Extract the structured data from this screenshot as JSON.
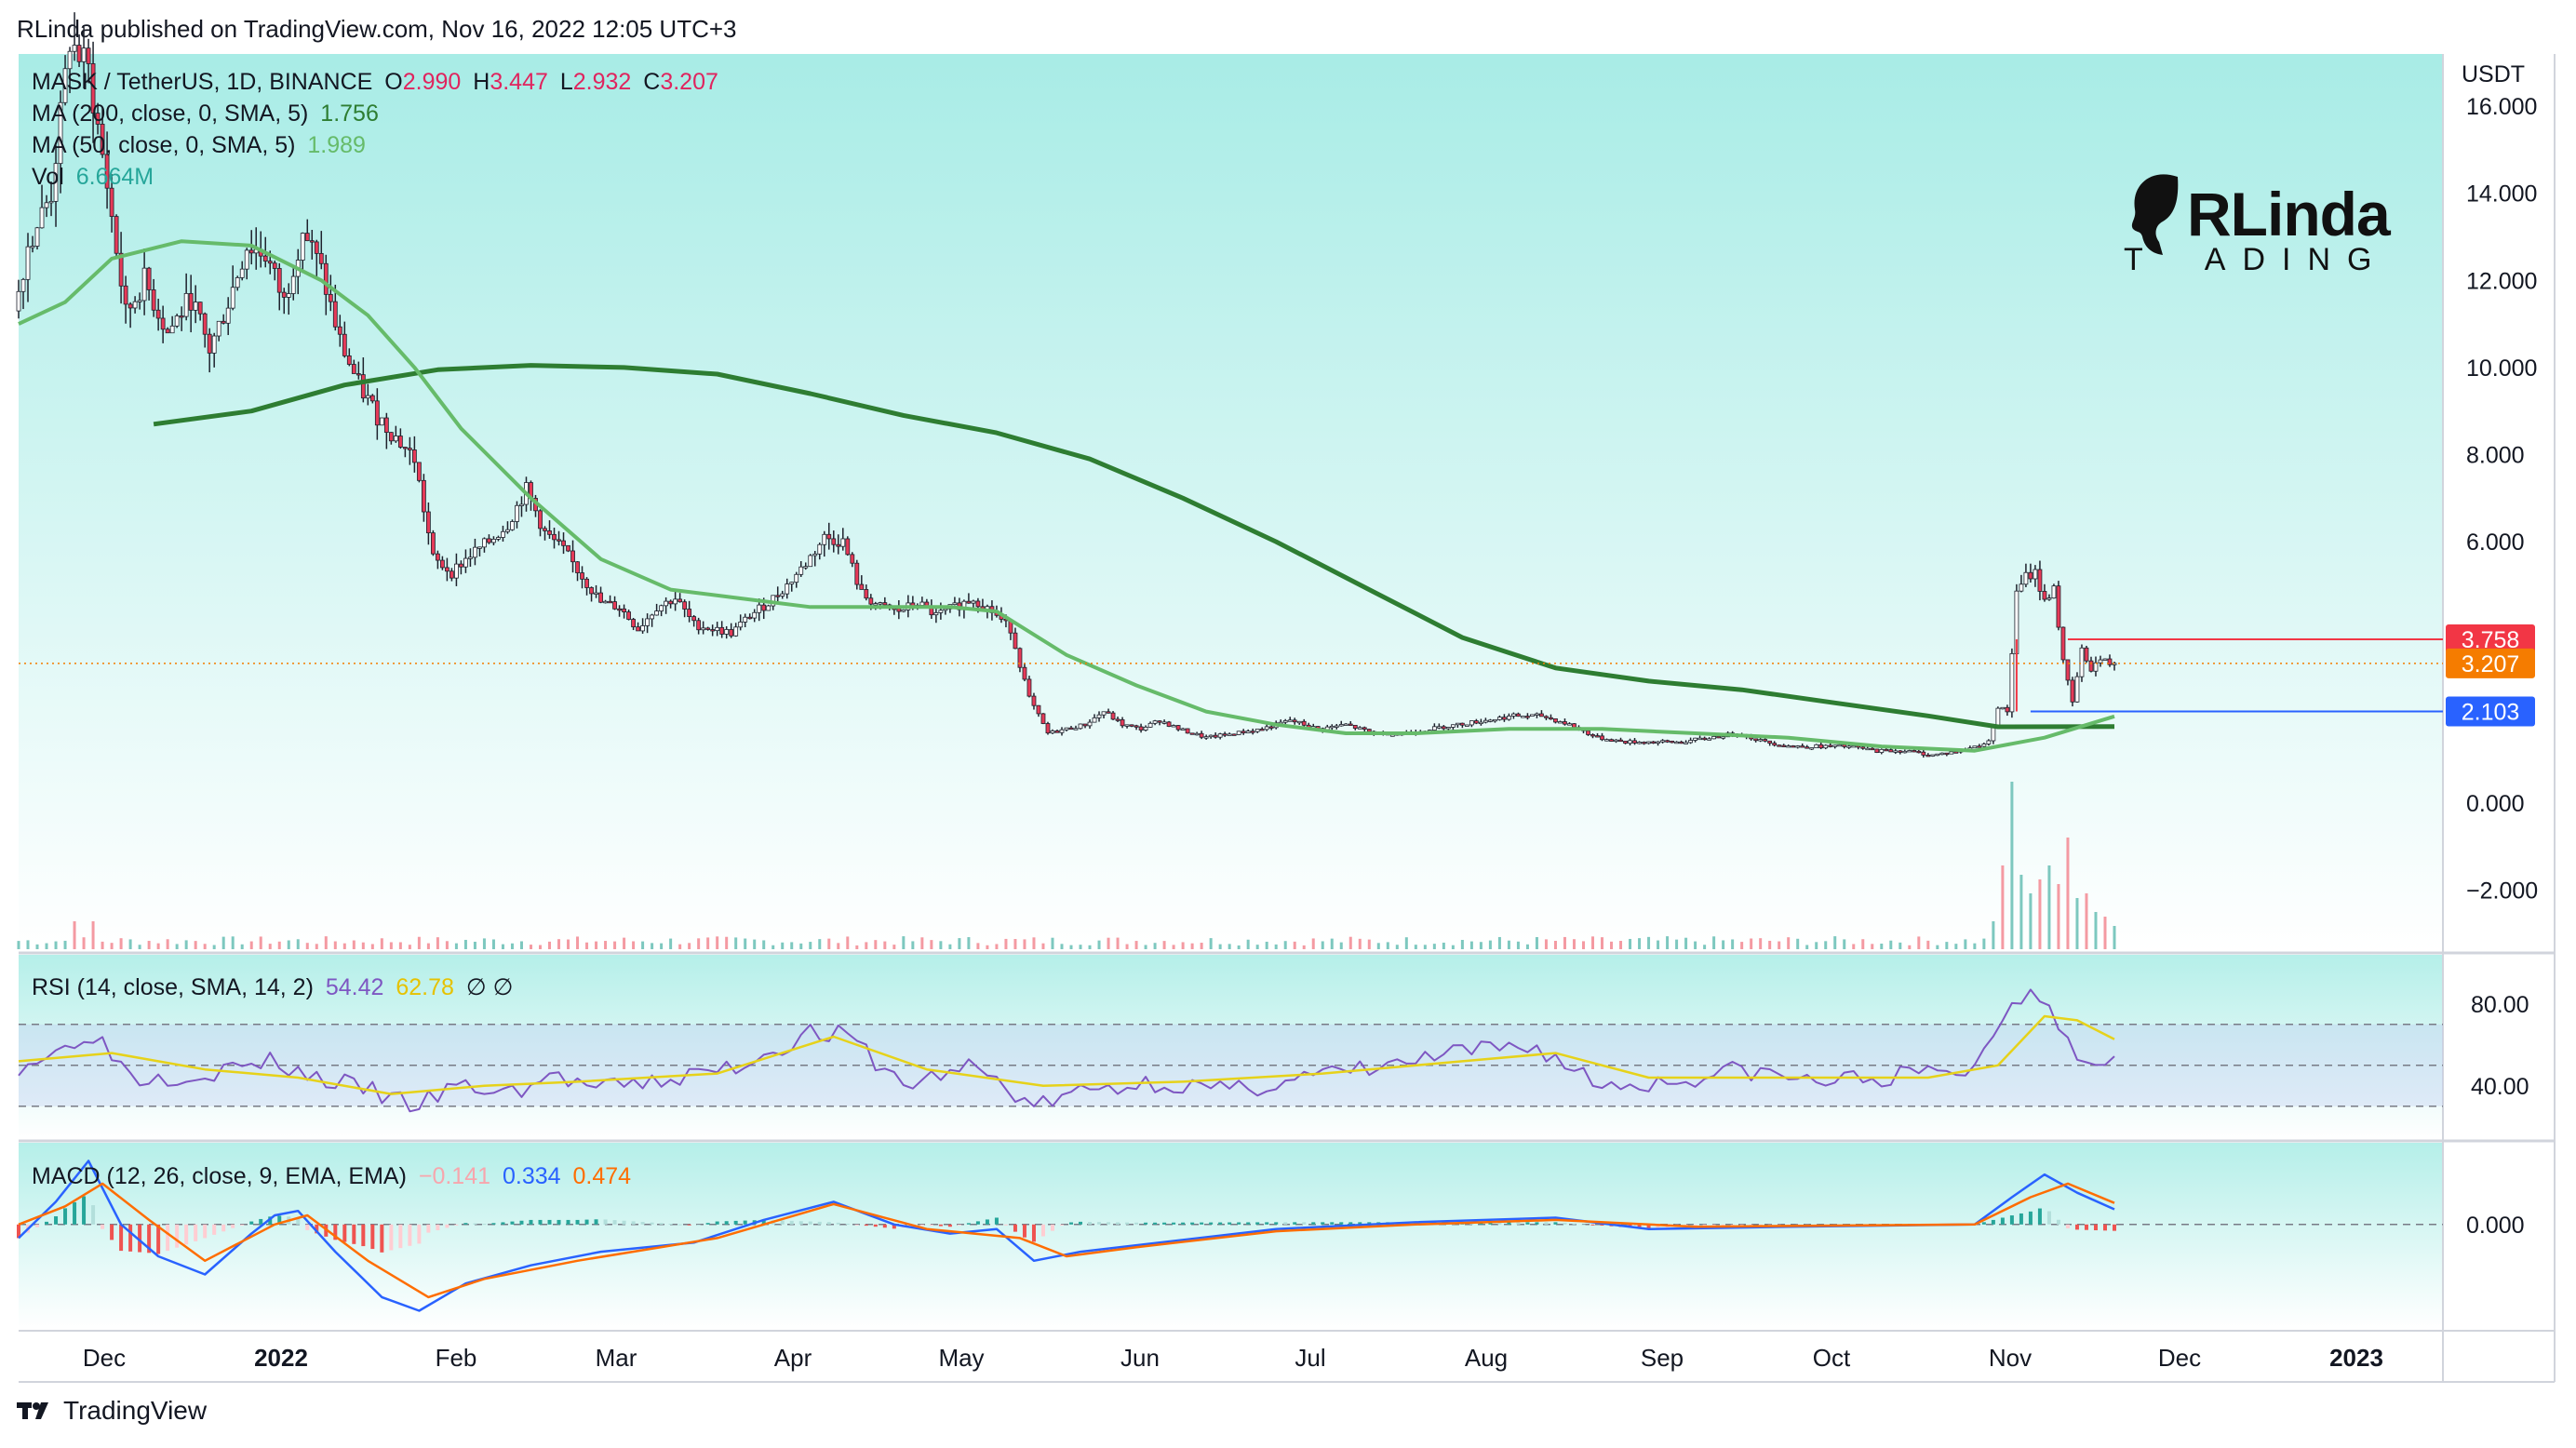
{
  "header": {
    "published": "RLinda published on TradingView.com, Nov 16, 2022 12:05 UTC+3"
  },
  "footer": {
    "brand": "TradingView"
  },
  "logo": {
    "line1": "RLinda",
    "line2_prefix": "T",
    "line2": "ADING"
  },
  "chart_data": [
    {
      "type": "candlestick",
      "symbol": "MASK / TetherUS, 1D, BINANCE",
      "ohlc": {
        "o_label": "O",
        "o": "2.990",
        "h_label": "H",
        "h": "3.447",
        "l_label": "L",
        "l": "2.932",
        "c_label": "C",
        "c": "3.207"
      },
      "currency": "USDT",
      "y_ticks": [
        "16.000",
        "14.000",
        "12.000",
        "10.000",
        "8.000",
        "6.000",
        "0.000",
        "−2.000"
      ],
      "ylim": [
        -3.4,
        17.2
      ],
      "price_labels": [
        {
          "value": 3.758,
          "text": "3.758",
          "color": "#f23645"
        },
        {
          "value": 3.207,
          "text": "3.207",
          "color": "#f57c00"
        },
        {
          "value": 2.103,
          "text": "2.103",
          "color": "#2962ff"
        }
      ],
      "x_ticks": [
        "Dec",
        "2022",
        "Feb",
        "Mar",
        "Apr",
        "May",
        "Jun",
        "Jul",
        "Aug",
        "Sep",
        "Oct",
        "Nov",
        "Dec",
        "2023"
      ],
      "close_path": [
        [
          0,
          11.3
        ],
        [
          3,
          12.8
        ],
        [
          8,
          14.0
        ],
        [
          12,
          17.5
        ],
        [
          16,
          16.8
        ],
        [
          20,
          14.2
        ],
        [
          24,
          11.2
        ],
        [
          28,
          12.0
        ],
        [
          33,
          10.8
        ],
        [
          38,
          11.6
        ],
        [
          42,
          10.4
        ],
        [
          46,
          11.5
        ],
        [
          50,
          12.8
        ],
        [
          54,
          12.6
        ],
        [
          58,
          11.5
        ],
        [
          62,
          13.2
        ],
        [
          66,
          12.2
        ],
        [
          70,
          10.6
        ],
        [
          74,
          9.6
        ],
        [
          78,
          8.9
        ],
        [
          82,
          8.4
        ],
        [
          86,
          7.9
        ],
        [
          90,
          5.6
        ],
        [
          94,
          5.3
        ],
        [
          98,
          5.7
        ],
        [
          102,
          6.0
        ],
        [
          106,
          6.4
        ],
        [
          110,
          7.2
        ],
        [
          114,
          6.2
        ],
        [
          118,
          5.8
        ],
        [
          122,
          5.2
        ],
        [
          126,
          4.6
        ],
        [
          130,
          4.5
        ],
        [
          134,
          4.0
        ],
        [
          138,
          4.5
        ],
        [
          142,
          4.7
        ],
        [
          146,
          4.1
        ],
        [
          150,
          4.0
        ],
        [
          154,
          3.9
        ],
        [
          158,
          4.3
        ],
        [
          162,
          4.6
        ],
        [
          166,
          5.0
        ],
        [
          170,
          5.5
        ],
        [
          174,
          6.1
        ],
        [
          178,
          6.0
        ],
        [
          182,
          4.8
        ],
        [
          186,
          4.5
        ],
        [
          190,
          4.4
        ],
        [
          194,
          4.6
        ],
        [
          198,
          4.3
        ],
        [
          202,
          4.5
        ],
        [
          206,
          4.7
        ],
        [
          210,
          4.4
        ],
        [
          214,
          4.0
        ],
        [
          218,
          2.4
        ],
        [
          222,
          1.6
        ],
        [
          226,
          1.7
        ],
        [
          230,
          1.8
        ],
        [
          234,
          2.1
        ],
        [
          238,
          1.8
        ],
        [
          242,
          1.7
        ],
        [
          246,
          1.9
        ],
        [
          250,
          1.7
        ],
        [
          256,
          1.5
        ],
        [
          262,
          1.6
        ],
        [
          268,
          1.7
        ],
        [
          274,
          1.9
        ],
        [
          280,
          1.7
        ],
        [
          286,
          1.8
        ],
        [
          292,
          1.6
        ],
        [
          298,
          1.6
        ],
        [
          304,
          1.7
        ],
        [
          310,
          1.8
        ],
        [
          316,
          1.9
        ],
        [
          322,
          2.0
        ],
        [
          328,
          2.0
        ],
        [
          334,
          1.8
        ],
        [
          340,
          1.5
        ],
        [
          346,
          1.4
        ],
        [
          352,
          1.4
        ],
        [
          358,
          1.4
        ],
        [
          364,
          1.5
        ],
        [
          370,
          1.6
        ],
        [
          376,
          1.4
        ],
        [
          382,
          1.3
        ],
        [
          388,
          1.3
        ],
        [
          394,
          1.3
        ],
        [
          400,
          1.2
        ],
        [
          406,
          1.2
        ],
        [
          412,
          1.1
        ],
        [
          418,
          1.2
        ],
        [
          424,
          1.4
        ],
        [
          426,
          2.2
        ],
        [
          428,
          2.1
        ],
        [
          430,
          4.8
        ],
        [
          432,
          5.2
        ],
        [
          434,
          5.3
        ],
        [
          436,
          4.6
        ],
        [
          438,
          5.0
        ],
        [
          440,
          3.2
        ],
        [
          442,
          2.3
        ],
        [
          444,
          3.5
        ],
        [
          446,
          3.1
        ],
        [
          448,
          3.3
        ],
        [
          450,
          3.207
        ]
      ],
      "ma200": {
        "label": "MA (200, close, 0, SMA, 5)",
        "value": "1.756",
        "color": "#2e7d32",
        "points": [
          [
            29,
            8.7
          ],
          [
            50,
            9.0
          ],
          [
            70,
            9.6
          ],
          [
            90,
            9.95
          ],
          [
            110,
            10.05
          ],
          [
            130,
            10.0
          ],
          [
            150,
            9.85
          ],
          [
            170,
            9.4
          ],
          [
            190,
            8.9
          ],
          [
            210,
            8.5
          ],
          [
            230,
            7.9
          ],
          [
            250,
            7.0
          ],
          [
            270,
            6.0
          ],
          [
            290,
            4.9
          ],
          [
            310,
            3.8
          ],
          [
            330,
            3.1
          ],
          [
            350,
            2.8
          ],
          [
            370,
            2.6
          ],
          [
            390,
            2.3
          ],
          [
            410,
            2.0
          ],
          [
            425,
            1.75
          ],
          [
            450,
            1.756
          ]
        ]
      },
      "ma50": {
        "label": "MA (50, close, 0, SMA, 5)",
        "value": "1.989",
        "color": "#66bb6a",
        "points": [
          [
            0,
            11.0
          ],
          [
            10,
            11.5
          ],
          [
            20,
            12.5
          ],
          [
            35,
            12.9
          ],
          [
            50,
            12.8
          ],
          [
            65,
            12.0
          ],
          [
            75,
            11.2
          ],
          [
            85,
            10.0
          ],
          [
            95,
            8.6
          ],
          [
            110,
            7.0
          ],
          [
            125,
            5.6
          ],
          [
            140,
            4.9
          ],
          [
            155,
            4.7
          ],
          [
            170,
            4.5
          ],
          [
            185,
            4.5
          ],
          [
            200,
            4.5
          ],
          [
            210,
            4.4
          ],
          [
            225,
            3.4
          ],
          [
            240,
            2.7
          ],
          [
            255,
            2.1
          ],
          [
            270,
            1.8
          ],
          [
            285,
            1.6
          ],
          [
            300,
            1.6
          ],
          [
            320,
            1.7
          ],
          [
            340,
            1.7
          ],
          [
            360,
            1.6
          ],
          [
            380,
            1.5
          ],
          [
            400,
            1.3
          ],
          [
            420,
            1.2
          ],
          [
            435,
            1.5
          ],
          [
            450,
            1.989
          ]
        ]
      },
      "vol": {
        "label": "Vol",
        "value": "6.664M",
        "color": "#26a69a"
      }
    },
    {
      "type": "line",
      "name": "RSI",
      "label": "RSI (14, close, SMA, 14, 2)",
      "value": "54.42",
      "value_color": "#7e57c2",
      "sma_value": "62.78",
      "sma_color": "#fdd835",
      "extra": "∅ ∅",
      "y_ticks": [
        "80.00",
        "40.00"
      ],
      "ylim": [
        14,
        104
      ],
      "levels": [
        70,
        50,
        30
      ],
      "rsi": [
        [
          0,
          50
        ],
        [
          10,
          58
        ],
        [
          15,
          68
        ],
        [
          25,
          44
        ],
        [
          40,
          46
        ],
        [
          55,
          52
        ],
        [
          62,
          45
        ],
        [
          75,
          38
        ],
        [
          85,
          30
        ],
        [
          95,
          40
        ],
        [
          105,
          36
        ],
        [
          115,
          45
        ],
        [
          125,
          38
        ],
        [
          140,
          43
        ],
        [
          155,
          50
        ],
        [
          170,
          66
        ],
        [
          178,
          64
        ],
        [
          190,
          40
        ],
        [
          205,
          50
        ],
        [
          218,
          30
        ],
        [
          230,
          38
        ],
        [
          245,
          42
        ],
        [
          260,
          37
        ],
        [
          275,
          44
        ],
        [
          290,
          48
        ],
        [
          310,
          56
        ],
        [
          325,
          60
        ],
        [
          340,
          40
        ],
        [
          355,
          42
        ],
        [
          370,
          48
        ],
        [
          385,
          42
        ],
        [
          400,
          44
        ],
        [
          420,
          48
        ],
        [
          426,
          75
        ],
        [
          432,
          88
        ],
        [
          436,
          82
        ],
        [
          442,
          52
        ],
        [
          450,
          54.42
        ]
      ],
      "sma": [
        [
          0,
          52
        ],
        [
          20,
          56
        ],
        [
          40,
          48
        ],
        [
          60,
          44
        ],
        [
          80,
          36
        ],
        [
          100,
          40
        ],
        [
          120,
          42
        ],
        [
          150,
          46
        ],
        [
          175,
          64
        ],
        [
          195,
          48
        ],
        [
          220,
          40
        ],
        [
          250,
          42
        ],
        [
          280,
          46
        ],
        [
          310,
          52
        ],
        [
          330,
          56
        ],
        [
          350,
          44
        ],
        [
          380,
          44
        ],
        [
          410,
          44
        ],
        [
          425,
          50
        ],
        [
          435,
          74
        ],
        [
          442,
          72
        ],
        [
          450,
          62.78
        ]
      ]
    },
    {
      "type": "line",
      "name": "MACD",
      "label": "MACD (12, 26, close, 9, EMA, EMA)",
      "hist_value": "−0.141",
      "hist_color": "#f7a6ad",
      "macd_value": "0.334",
      "macd_color": "#2962ff",
      "signal_value": "0.474",
      "signal_color": "#ff6d00",
      "y_ticks": [
        "0.000"
      ],
      "ylim": [
        -2.3,
        1.8
      ],
      "macd": [
        [
          0,
          -0.3
        ],
        [
          8,
          0.5
        ],
        [
          15,
          1.4
        ],
        [
          22,
          0.0
        ],
        [
          30,
          -0.7
        ],
        [
          40,
          -1.1
        ],
        [
          50,
          -0.2
        ],
        [
          55,
          0.2
        ],
        [
          60,
          0.3
        ],
        [
          68,
          -0.6
        ],
        [
          78,
          -1.6
        ],
        [
          86,
          -1.9
        ],
        [
          96,
          -1.3
        ],
        [
          110,
          -0.9
        ],
        [
          125,
          -0.6
        ],
        [
          145,
          -0.4
        ],
        [
          160,
          0.1
        ],
        [
          175,
          0.5
        ],
        [
          188,
          0.0
        ],
        [
          200,
          -0.2
        ],
        [
          210,
          -0.1
        ],
        [
          218,
          -0.8
        ],
        [
          228,
          -0.6
        ],
        [
          245,
          -0.4
        ],
        [
          270,
          -0.1
        ],
        [
          300,
          0.05
        ],
        [
          330,
          0.15
        ],
        [
          350,
          -0.1
        ],
        [
          380,
          -0.05
        ],
        [
          420,
          0.0
        ],
        [
          428,
          0.6
        ],
        [
          435,
          1.1
        ],
        [
          442,
          0.7
        ],
        [
          450,
          0.334
        ]
      ],
      "signal": [
        [
          0,
          0.0
        ],
        [
          10,
          0.4
        ],
        [
          18,
          0.9
        ],
        [
          28,
          0.1
        ],
        [
          40,
          -0.8
        ],
        [
          55,
          0.0
        ],
        [
          62,
          0.2
        ],
        [
          75,
          -0.8
        ],
        [
          88,
          -1.6
        ],
        [
          100,
          -1.2
        ],
        [
          120,
          -0.8
        ],
        [
          150,
          -0.3
        ],
        [
          175,
          0.45
        ],
        [
          195,
          -0.1
        ],
        [
          215,
          -0.3
        ],
        [
          225,
          -0.7
        ],
        [
          240,
          -0.5
        ],
        [
          270,
          -0.15
        ],
        [
          300,
          0.0
        ],
        [
          330,
          0.1
        ],
        [
          360,
          -0.05
        ],
        [
          420,
          0.0
        ],
        [
          432,
          0.6
        ],
        [
          440,
          0.9
        ],
        [
          450,
          0.474
        ]
      ]
    }
  ]
}
